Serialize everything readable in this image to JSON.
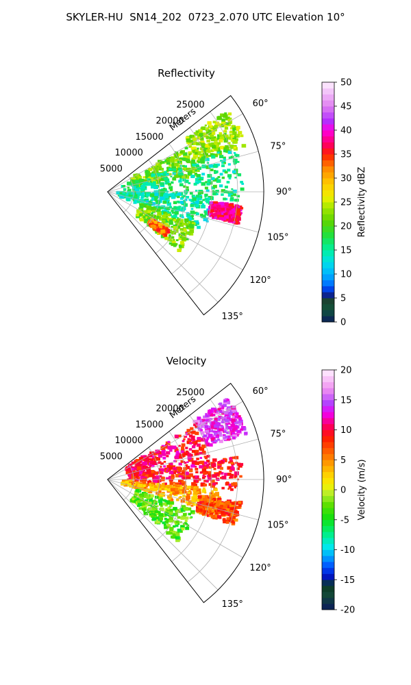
{
  "figure": {
    "title": "SKYLER-HU  SN14_202  0723_2.070 UTC Elevation 10°"
  },
  "chart_data": [
    {
      "type": "heatmap",
      "projection": "polar-sector",
      "title": "Reflectivity",
      "range_label": "Meters",
      "range_ticks": [
        5000,
        10000,
        15000,
        20000,
        25000
      ],
      "rmax": 30000,
      "azimuth_range_deg": [
        52,
        142
      ],
      "azimuth_ticks": [
        "60°",
        "75°",
        "90°",
        "105°",
        "120°",
        "135°"
      ],
      "azimuth_tick_values": [
        60,
        75,
        90,
        105,
        120,
        135
      ],
      "grid": true,
      "colorbar": {
        "label": "Reflectivity dBZ",
        "vmin": 0,
        "vmax": 50,
        "ticks": [
          0,
          5,
          10,
          15,
          20,
          25,
          30,
          35,
          40,
          45,
          50
        ]
      },
      "echo_regions": [
        {
          "az": [
            56,
            72
          ],
          "r": [
            18000,
            28000
          ],
          "value": 23
        },
        {
          "az": [
            60,
            80
          ],
          "r": [
            5000,
            18000
          ],
          "value": 22
        },
        {
          "az": [
            70,
            95
          ],
          "r": [
            3000,
            26000
          ],
          "value": 16
        },
        {
          "az": [
            92,
            112
          ],
          "r": [
            2000,
            20000
          ],
          "value": 15
        },
        {
          "az": [
            96,
            104
          ],
          "r": [
            20000,
            26000
          ],
          "value": 38
        },
        {
          "az": [
            110,
            130
          ],
          "r": [
            7000,
            18000
          ],
          "value": 22
        },
        {
          "az": [
            122,
            128
          ],
          "r": [
            10000,
            14000
          ],
          "value": 33
        }
      ]
    },
    {
      "type": "heatmap",
      "projection": "polar-sector",
      "title": "Velocity",
      "range_label": "Meters",
      "range_ticks": [
        5000,
        10000,
        15000,
        20000,
        25000
      ],
      "rmax": 30000,
      "azimuth_range_deg": [
        52,
        142
      ],
      "azimuth_ticks": [
        "60°",
        "75°",
        "90°",
        "105°",
        "120°",
        "135°"
      ],
      "azimuth_tick_values": [
        60,
        75,
        90,
        105,
        120,
        135
      ],
      "grid": true,
      "colorbar": {
        "label": "Velocity (m/s)",
        "vmin": -20,
        "vmax": 20,
        "ticks": [
          -20,
          -15,
          -10,
          -5,
          0,
          5,
          10,
          15,
          20
        ]
      },
      "echo_regions": [
        {
          "az": [
            56,
            72
          ],
          "r": [
            20000,
            28000
          ],
          "value": 14
        },
        {
          "az": [
            58,
            82
          ],
          "r": [
            4000,
            20000
          ],
          "value": 10
        },
        {
          "az": [
            80,
            95
          ],
          "r": [
            4000,
            26000
          ],
          "value": 9
        },
        {
          "az": [
            95,
            108
          ],
          "r": [
            3000,
            22000
          ],
          "value": 4
        },
        {
          "az": [
            100,
            110
          ],
          "r": [
            18000,
            26000
          ],
          "value": 7
        },
        {
          "az": [
            110,
            132
          ],
          "r": [
            6000,
            18000
          ],
          "value": -3
        }
      ]
    }
  ],
  "colors": {
    "grid": "#b0b0b0",
    "axis": "#000000"
  }
}
